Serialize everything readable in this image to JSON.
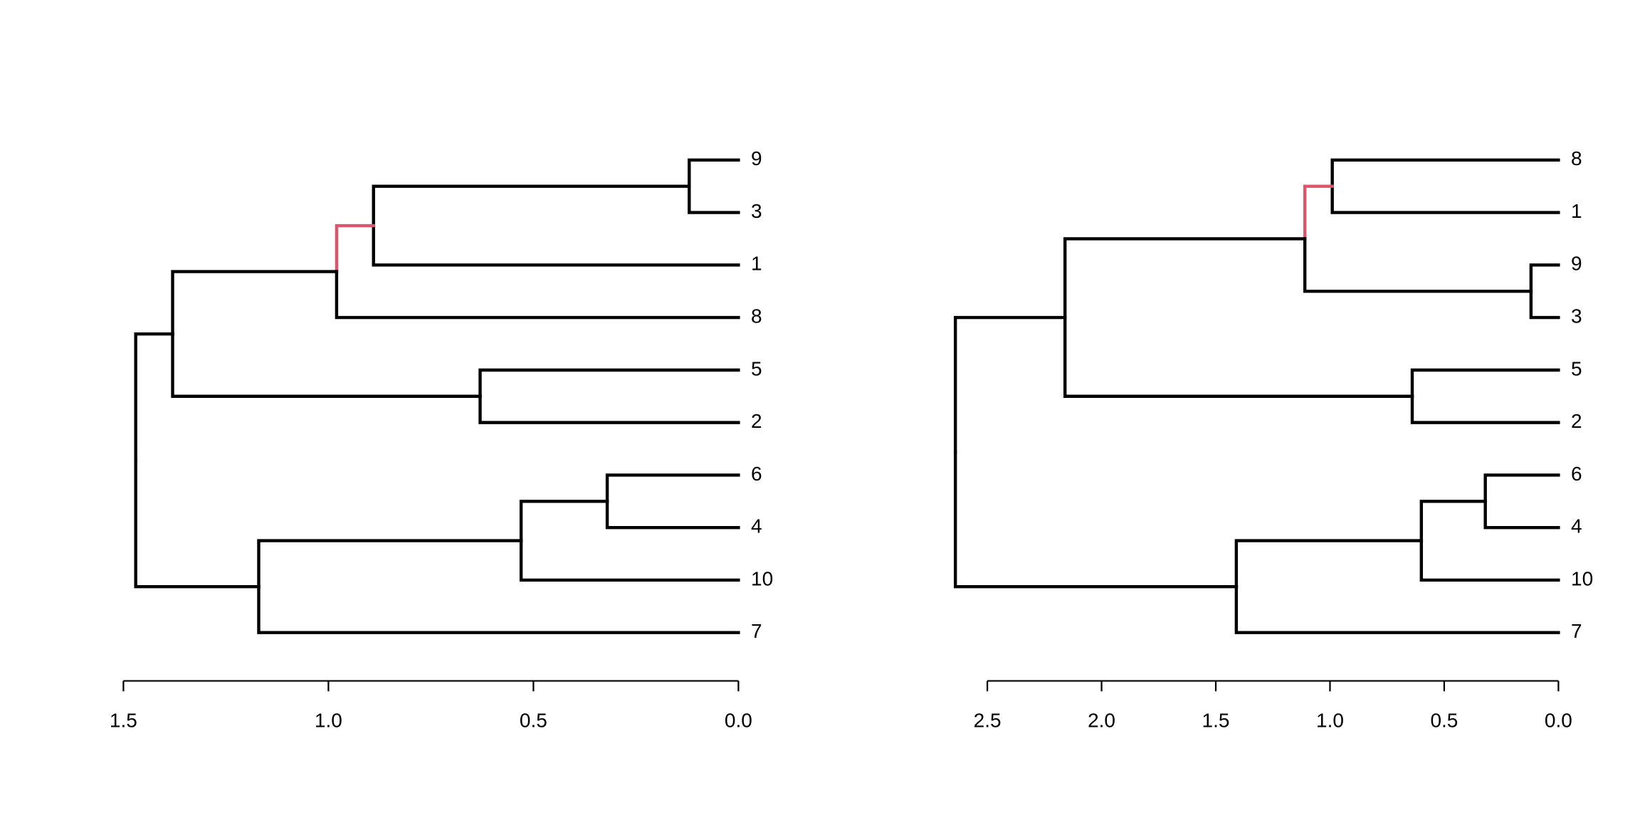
{
  "chart_data": [
    {
      "type": "dendrogram",
      "labels": [
        "9",
        "3",
        "1",
        "8",
        "5",
        "2",
        "6",
        "4",
        "10",
        "7"
      ],
      "merges": [
        {
          "children": [
            0,
            1
          ],
          "height": 0.12
        },
        {
          "children": [
            10,
            2
          ],
          "height": 0.89
        },
        {
          "children": [
            11,
            3
          ],
          "height": 0.98
        },
        {
          "children": [
            4,
            5
          ],
          "height": 0.63
        },
        {
          "children": [
            12,
            13
          ],
          "height": 1.38
        },
        {
          "children": [
            6,
            7
          ],
          "height": 0.32
        },
        {
          "children": [
            15,
            8
          ],
          "height": 0.53
        },
        {
          "children": [
            16,
            9
          ],
          "height": 1.17
        },
        {
          "children": [
            14,
            17
          ],
          "height": 1.47
        }
      ],
      "color": "#000000",
      "highlight": {
        "node": 11,
        "color": "#DF536B"
      },
      "xlim": [
        1.5,
        0
      ],
      "xticks": [
        {
          "value": 1.5,
          "label": "1.5"
        },
        {
          "value": 1,
          "label": "1.0"
        },
        {
          "value": 0.5,
          "label": "0.5"
        },
        {
          "value": 0,
          "label": "0.0"
        }
      ]
    },
    {
      "type": "dendrogram",
      "labels": [
        "8",
        "1",
        "9",
        "3",
        "5",
        "2",
        "6",
        "4",
        "10",
        "7"
      ],
      "merges": [
        {
          "children": [
            0,
            1
          ],
          "height": 0.99
        },
        {
          "children": [
            2,
            3
          ],
          "height": 0.12
        },
        {
          "children": [
            10,
            11
          ],
          "height": 1.11
        },
        {
          "children": [
            4,
            5
          ],
          "height": 0.64
        },
        {
          "children": [
            12,
            13
          ],
          "height": 2.16
        },
        {
          "children": [
            6,
            7
          ],
          "height": 0.32
        },
        {
          "children": [
            15,
            8
          ],
          "height": 0.6
        },
        {
          "children": [
            16,
            9
          ],
          "height": 1.41
        },
        {
          "children": [
            14,
            17
          ],
          "height": 2.64
        }
      ],
      "color": "#000000",
      "highlight": {
        "node": 10,
        "color": "#DF536B"
      },
      "xlim": [
        2.5,
        0
      ],
      "xticks": [
        {
          "value": 2.5,
          "label": "2.5"
        },
        {
          "value": 2,
          "label": "2.0"
        },
        {
          "value": 1.5,
          "label": "1.5"
        },
        {
          "value": 1,
          "label": "1.0"
        },
        {
          "value": 0.5,
          "label": "0.5"
        },
        {
          "value": 0,
          "label": "0.0"
        }
      ]
    }
  ]
}
